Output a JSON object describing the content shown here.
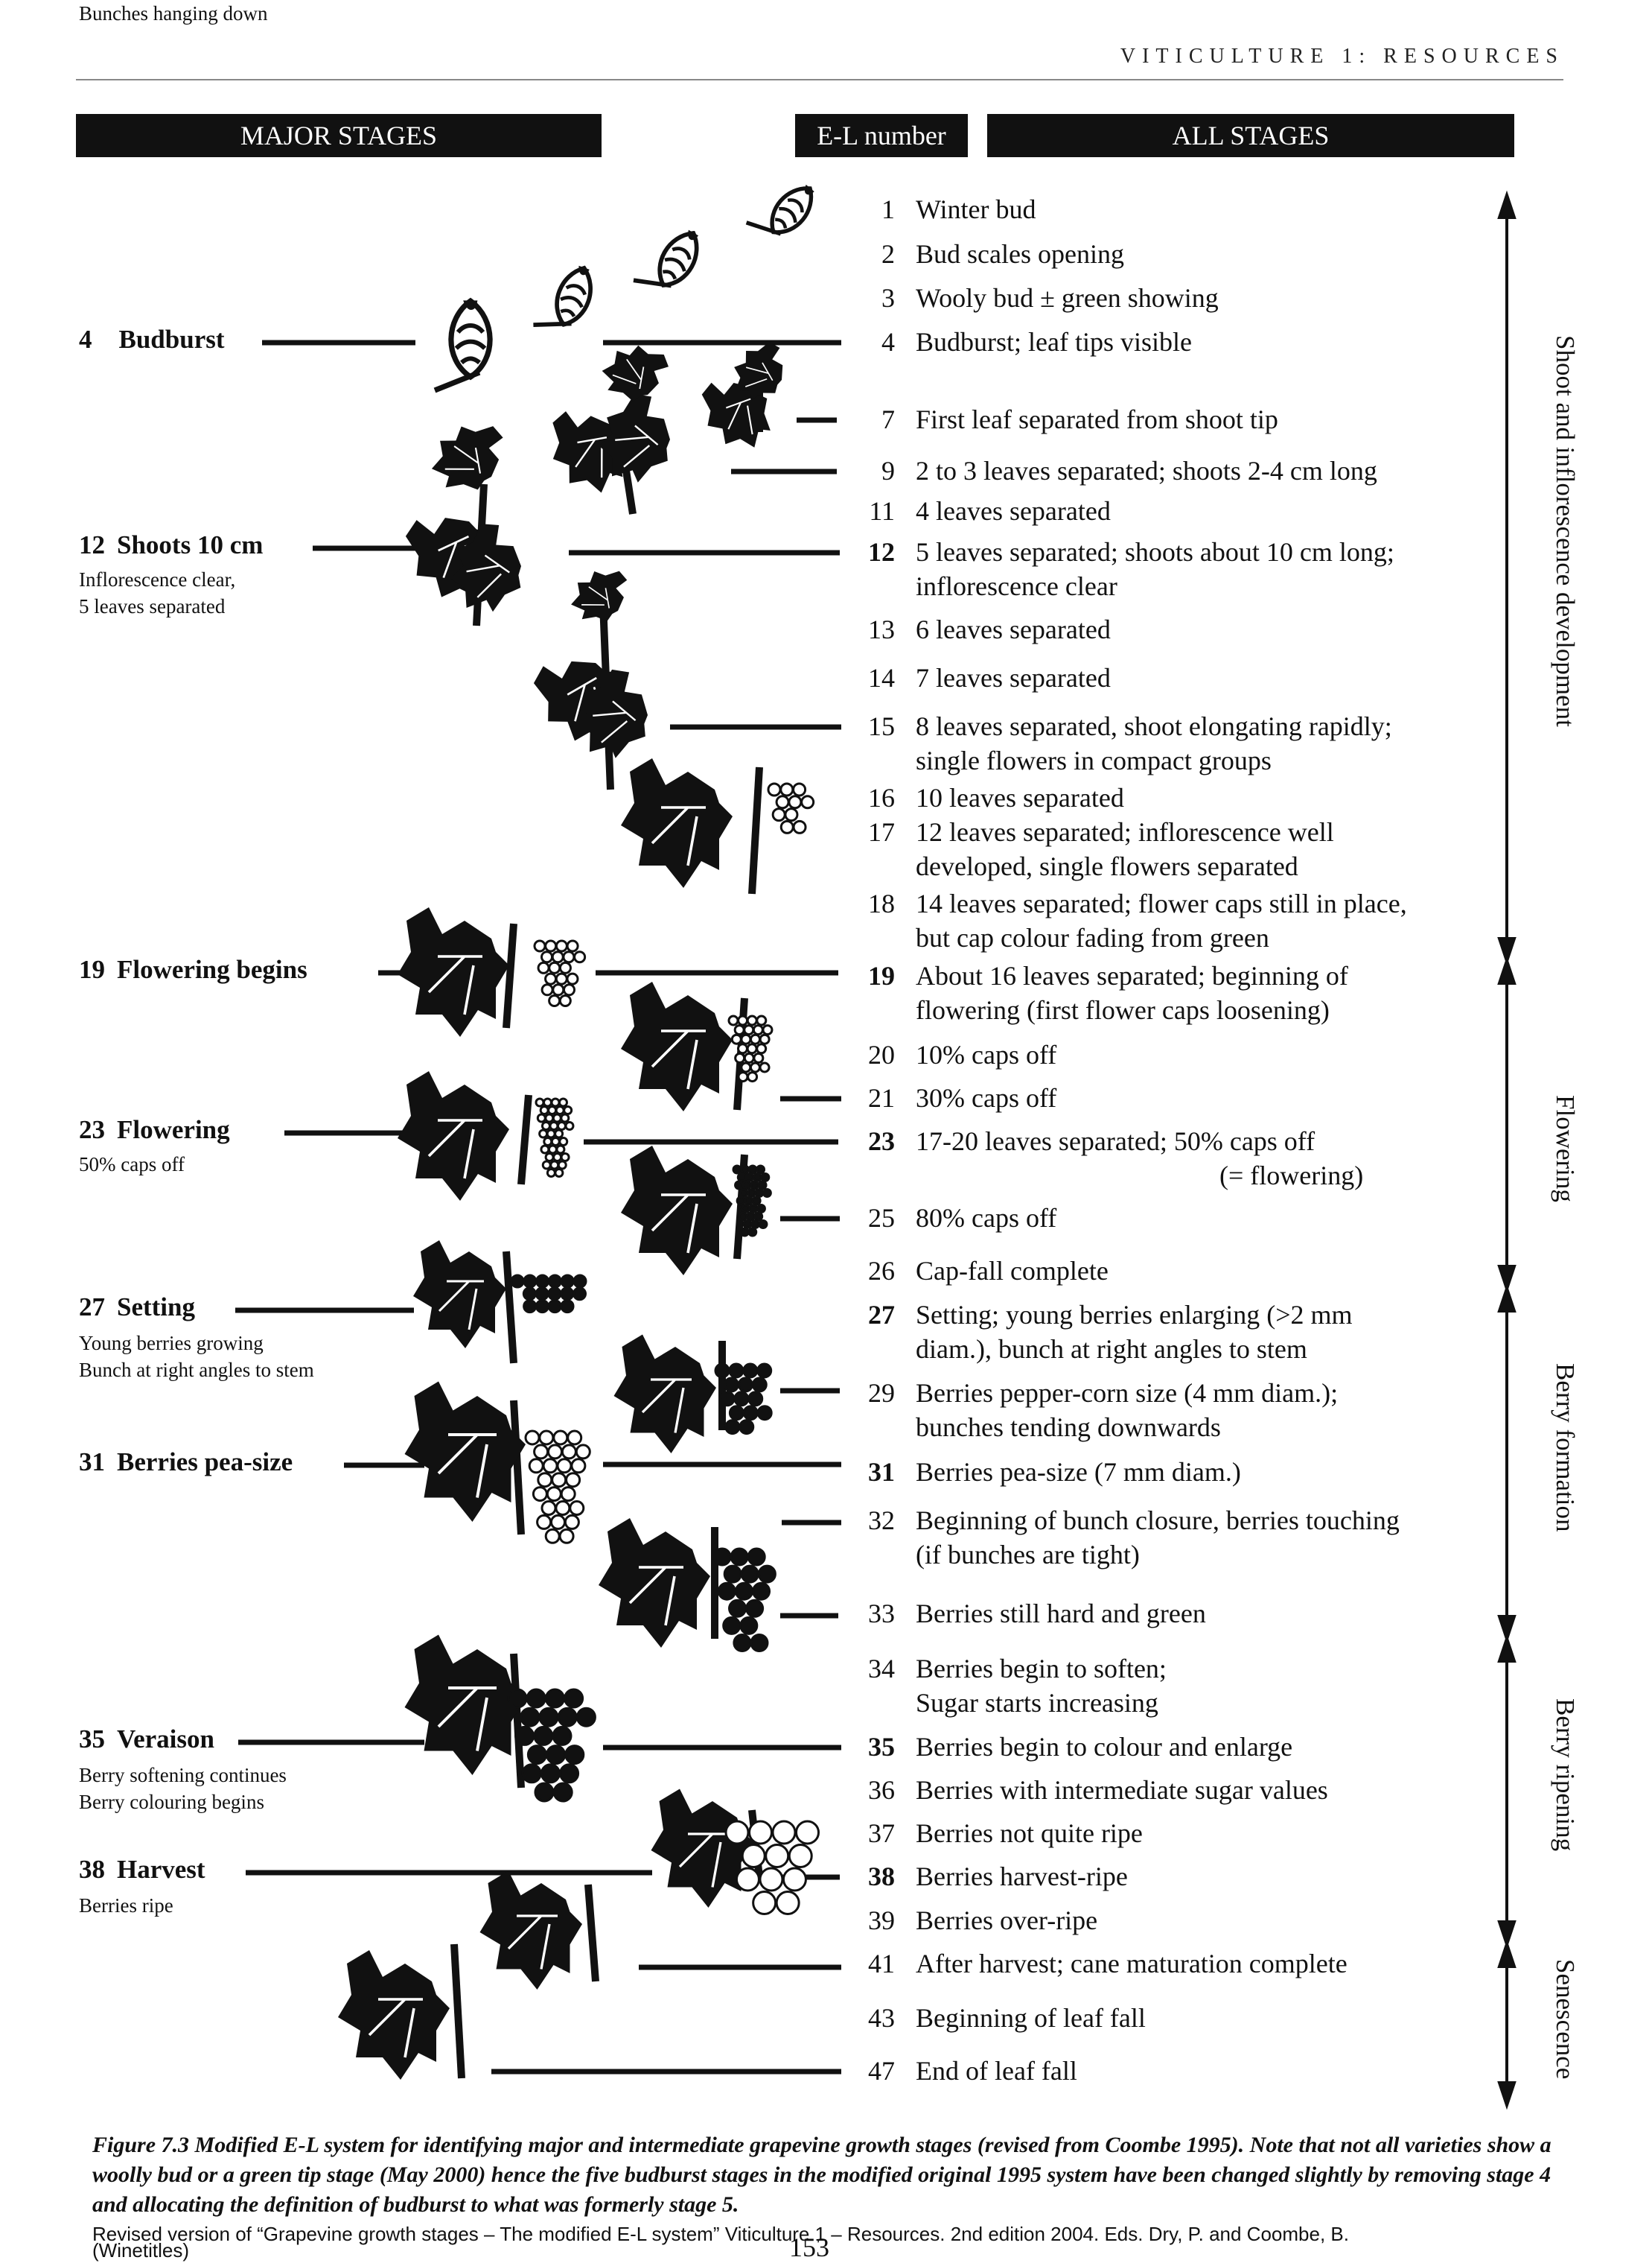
{
  "header": {
    "running_title": "VITICULTURE 1: RESOURCES"
  },
  "columns": {
    "major_stages": "MAJOR STAGES",
    "el_number": "E-L number",
    "all_stages": "ALL STAGES"
  },
  "stages": [
    {
      "num": "1",
      "lines": [
        "Winter bud"
      ],
      "bold": false
    },
    {
      "num": "2",
      "lines": [
        "Bud scales opening"
      ],
      "bold": false
    },
    {
      "num": "3",
      "lines": [
        "Wooly bud ± green showing"
      ],
      "bold": false
    },
    {
      "num": "4",
      "lines": [
        "Budburst; leaf tips visible"
      ],
      "bold": false
    },
    {
      "num": "7",
      "lines": [
        "First leaf separated from shoot tip"
      ],
      "bold": false
    },
    {
      "num": "9",
      "lines": [
        "2 to 3 leaves separated; shoots 2-4 cm long"
      ],
      "bold": false
    },
    {
      "num": "11",
      "lines": [
        "4 leaves separated"
      ],
      "bold": false
    },
    {
      "num": "12",
      "lines": [
        "5 leaves separated; shoots about 10 cm long;",
        "inflorescence clear"
      ],
      "bold": true
    },
    {
      "num": "13",
      "lines": [
        "6 leaves separated"
      ],
      "bold": false
    },
    {
      "num": "14",
      "lines": [
        "7 leaves separated"
      ],
      "bold": false
    },
    {
      "num": "15",
      "lines": [
        "8 leaves separated, shoot elongating rapidly;",
        "single flowers in compact groups"
      ],
      "bold": false
    },
    {
      "num": "16",
      "lines": [
        "10 leaves separated"
      ],
      "bold": false
    },
    {
      "num": "17",
      "lines": [
        "12 leaves separated; inflorescence well",
        "developed, single flowers separated"
      ],
      "bold": false
    },
    {
      "num": "18",
      "lines": [
        "14 leaves separated; flower caps still in place,",
        "but cap colour fading from green"
      ],
      "bold": false
    },
    {
      "num": "19",
      "lines": [
        "About 16 leaves separated; beginning of",
        "flowering (first flower caps loosening)"
      ],
      "bold": true
    },
    {
      "num": "20",
      "lines": [
        "10% caps off"
      ],
      "bold": false
    },
    {
      "num": "21",
      "lines": [
        "30% caps off"
      ],
      "bold": false
    },
    {
      "num": "23",
      "lines": [
        "17-20 leaves separated; 50% caps off",
        "(= flowering)"
      ],
      "bold": true
    },
    {
      "num": "25",
      "lines": [
        "80% caps off"
      ],
      "bold": false
    },
    {
      "num": "26",
      "lines": [
        "Cap-fall complete"
      ],
      "bold": false
    },
    {
      "num": "27",
      "lines": [
        "Setting; young berries enlarging (>2 mm",
        "diam.), bunch at right angles to stem"
      ],
      "bold": true
    },
    {
      "num": "29",
      "lines": [
        "Berries pepper-corn size (4 mm diam.);",
        "bunches tending downwards"
      ],
      "bold": false
    },
    {
      "num": "31",
      "lines": [
        "Berries pea-size (7 mm diam.)"
      ],
      "bold": true
    },
    {
      "num": "32",
      "lines": [
        "Beginning of bunch closure, berries touching",
        "(if bunches are tight)"
      ],
      "bold": false
    },
    {
      "num": "33",
      "lines": [
        "Berries still hard and green"
      ],
      "bold": false
    },
    {
      "num": "34",
      "lines": [
        "Berries begin to soften;",
        "Sugar starts increasing"
      ],
      "bold": false
    },
    {
      "num": "35",
      "lines": [
        "Berries begin to colour and enlarge"
      ],
      "bold": true
    },
    {
      "num": "36",
      "lines": [
        "Berries with intermediate sugar values"
      ],
      "bold": false
    },
    {
      "num": "37",
      "lines": [
        "Berries not quite ripe"
      ],
      "bold": false
    },
    {
      "num": "38",
      "lines": [
        "Berries harvest-ripe"
      ],
      "bold": true
    },
    {
      "num": "39",
      "lines": [
        "Berries over-ripe"
      ],
      "bold": false
    },
    {
      "num": "41",
      "lines": [
        "After harvest; cane maturation complete"
      ],
      "bold": false
    },
    {
      "num": "43",
      "lines": [
        "Beginning of leaf fall"
      ],
      "bold": false
    },
    {
      "num": "47",
      "lines": [
        "End of leaf fall"
      ],
      "bold": false
    }
  ],
  "major_stages": [
    {
      "num": "4",
      "title": "Budburst",
      "sub": []
    },
    {
      "num": "12",
      "title": "Shoots 10 cm",
      "sub": [
        "Inflorescence clear,",
        "5 leaves separated"
      ]
    },
    {
      "num": "19",
      "title": "Flowering begins",
      "sub": []
    },
    {
      "num": "23",
      "title": "Flowering",
      "sub": [
        "50% caps off"
      ]
    },
    {
      "num": "27",
      "title": "Setting",
      "sub": [
        "Young berries growing",
        "Bunch at right angles to stem"
      ]
    },
    {
      "num": "31",
      "title": "Berries pea-size",
      "sub": [
        "Bunches hanging down"
      ]
    },
    {
      "num": "35",
      "title": "Veraison",
      "sub": [
        "Berry softening continues",
        "Berry colouring begins"
      ]
    },
    {
      "num": "38",
      "title": "Harvest",
      "sub": [
        "Berries ripe"
      ]
    }
  ],
  "phases": [
    {
      "label": "Shoot and inflorescence development"
    },
    {
      "label": "Flowering"
    },
    {
      "label": "Berry formation"
    },
    {
      "label": "Berry ripening"
    },
    {
      "label": "Senescence"
    }
  ],
  "caption": {
    "figure_text": "Figure 7.3 Modified E-L system for identifying major and intermediate grapevine growth stages (revised from Coombe 1995). Note that not all varieties show a woolly bud or a green tip stage (May 2000) hence the five budburst stages in the modified original 1995 system have been changed slightly by removing stage 4 and allocating the definition of budburst to what was formerly stage 5.",
    "credit_line1": "Revised version of “Grapevine growth stages – The modified E-L system” Viticulture 1 – Resources. 2nd edition 2004. Eds. Dry, P. and Coombe, B.",
    "credit_line2": "(Winetitles)"
  },
  "page_number": "153"
}
